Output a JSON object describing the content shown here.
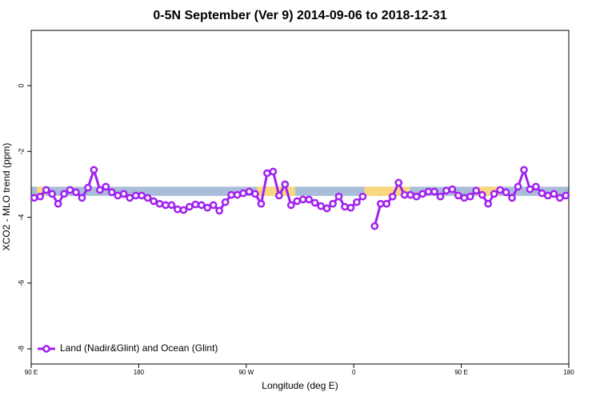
{
  "chart_data": {
    "type": "line",
    "title": "0-5N September (Ver 9)   2014-09-06 to 2018-12-31",
    "x_label": "Longitude (deg E)",
    "y_label": "XCO2 - MLO trend (ppm)",
    "xlim": [
      90,
      540
    ],
    "ylim": [
      -8.46,
      1.68
    ],
    "xticks": [
      {
        "value": 90,
        "label": "90 E"
      },
      {
        "value": 180,
        "label": "180"
      },
      {
        "value": 270,
        "label": "90 W"
      },
      {
        "value": 360,
        "label": "0"
      },
      {
        "value": 450,
        "label": "90 E"
      },
      {
        "value": 540,
        "label": "180"
      }
    ],
    "yticks": [
      -8,
      -6,
      -4,
      -2,
      0
    ],
    "band": {
      "y": [
        -3.35,
        -3.07
      ],
      "color": "#a9bdd9"
    },
    "highlights": {
      "color": "#f9d980",
      "x": [
        [
          95,
          102
        ],
        [
          279,
          311
        ],
        [
          369,
          407
        ],
        [
          463,
          482
        ]
      ]
    },
    "legend": "bottom-left",
    "x": [
      92.5,
      97.5,
      102.5,
      107.5,
      112.5,
      117.5,
      122.5,
      127.5,
      132.5,
      137.5,
      142.5,
      147.5,
      152.5,
      157.5,
      162.5,
      167.5,
      172.5,
      177.5,
      182.5,
      187.5,
      192.5,
      197.5,
      202.5,
      207.5,
      212.5,
      217.5,
      222.5,
      227.5,
      232.5,
      237.5,
      242.5,
      247.5,
      252.5,
      257.5,
      262.5,
      267.5,
      272.5,
      277.5,
      282.5,
      287.5,
      292.5,
      297.5,
      302.5,
      307.5,
      312.5,
      317.5,
      322.5,
      327.5,
      332.5,
      337.5,
      342.5,
      347.5,
      352.5,
      357.5,
      362.5,
      367.5,
      372.5,
      377.5,
      382.5,
      387.5,
      392.5,
      397.5,
      402.5,
      407.5,
      412.5,
      417.5,
      422.5,
      427.5,
      432.5,
      437.5,
      442.5,
      447.5,
      452.5,
      457.5,
      462.5,
      467.5,
      472.5,
      477.5,
      482.5,
      487.5,
      492.5,
      497.5,
      502.5,
      507.5,
      512.5,
      517.5,
      522.5,
      527.5,
      532.5,
      537.5
    ],
    "series": [
      {
        "name": "Land (Nadir&Glint) and Ocean (Glint)",
        "color": "#a020f0",
        "values": [
          -3.41,
          -3.37,
          -3.17,
          -3.29,
          -3.59,
          -3.29,
          -3.17,
          -3.24,
          -3.41,
          -3.1,
          -2.56,
          -3.17,
          -3.07,
          -3.24,
          -3.34,
          -3.29,
          -3.41,
          -3.34,
          -3.34,
          -3.41,
          -3.51,
          -3.59,
          -3.63,
          -3.63,
          -3.76,
          -3.78,
          -3.68,
          -3.61,
          -3.63,
          -3.71,
          -3.63,
          -3.8,
          -3.54,
          -3.32,
          -3.32,
          -3.27,
          -3.22,
          -3.29,
          -3.59,
          -2.66,
          -2.61,
          -3.34,
          -3.0,
          -3.63,
          -3.51,
          -3.46,
          -3.46,
          -3.56,
          -3.66,
          -3.73,
          -3.59,
          -3.37,
          -3.68,
          -3.71,
          -3.54,
          -3.37,
          null,
          -4.27,
          -3.59,
          -3.59,
          -3.37,
          -2.95,
          -3.32,
          -3.32,
          -3.37,
          -3.29,
          -3.22,
          -3.22,
          -3.37,
          -3.19,
          -3.15,
          -3.34,
          -3.41,
          -3.37,
          -3.19,
          -3.32,
          -3.59,
          -3.29,
          -3.17,
          -3.24,
          -3.41,
          -3.07,
          -2.56,
          -3.15,
          -3.07,
          -3.27,
          -3.34,
          -3.29,
          -3.41,
          -3.34
        ]
      }
    ]
  }
}
